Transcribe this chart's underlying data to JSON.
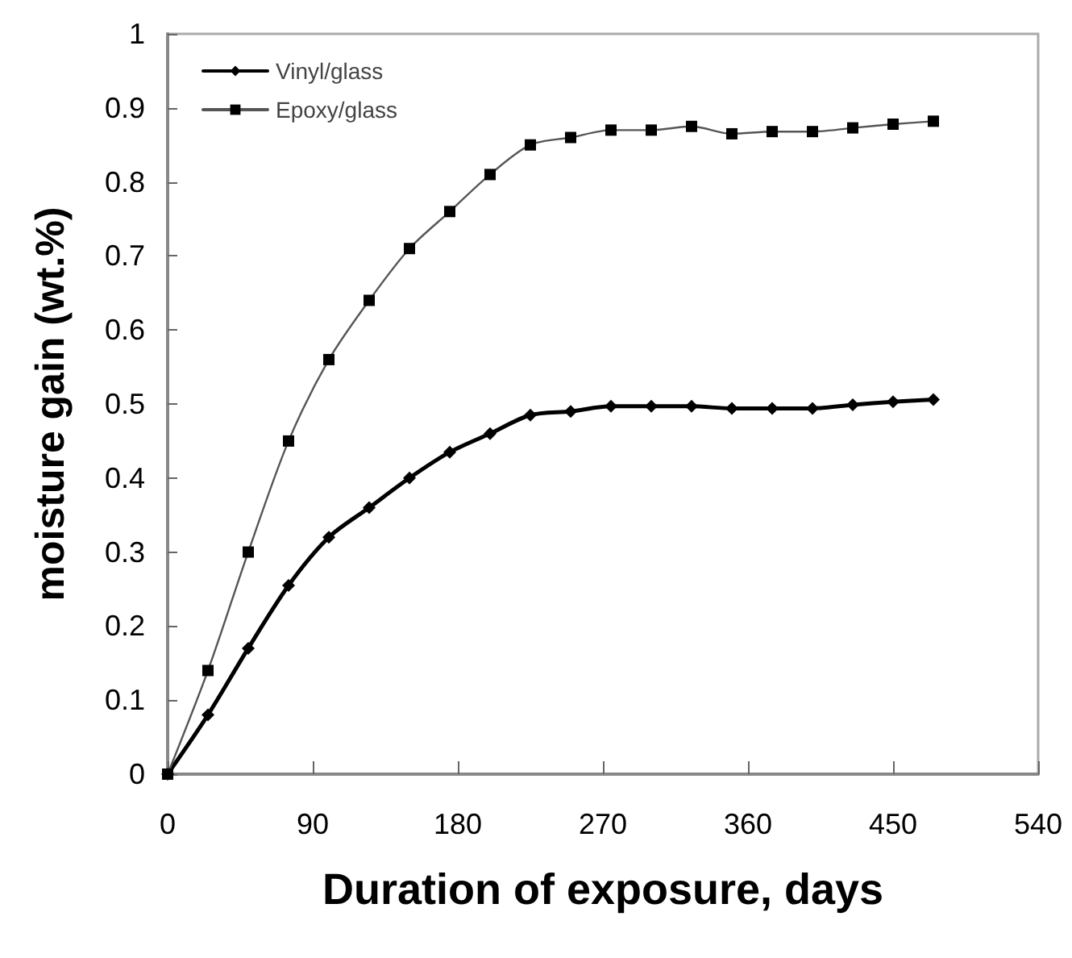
{
  "chart_data": {
    "type": "line",
    "xlabel": "Duration of exposure, days",
    "ylabel": "moisture gain (wt.%)",
    "x": [
      0,
      25,
      50,
      75,
      100,
      125,
      150,
      175,
      200,
      225,
      250,
      275,
      300,
      325,
      350,
      375,
      400,
      425,
      450,
      475
    ],
    "series": [
      {
        "name": "Vinyl/glass",
        "color": "#000000",
        "marker": "diamond",
        "values": [
          0,
          0.08,
          0.17,
          0.255,
          0.32,
          0.36,
          0.4,
          0.435,
          0.46,
          0.485,
          0.49,
          0.497,
          0.497,
          0.497,
          0.494,
          0.494,
          0.494,
          0.499,
          0.503,
          0.506
        ]
      },
      {
        "name": "Epoxy/glass",
        "color": "#555555",
        "marker": "square",
        "values": [
          0,
          0.14,
          0.3,
          0.45,
          0.56,
          0.64,
          0.71,
          0.76,
          0.81,
          0.85,
          0.86,
          0.87,
          0.87,
          0.875,
          0.865,
          0.868,
          0.868,
          0.873,
          0.878,
          0.882
        ]
      }
    ],
    "xlim": [
      0,
      540
    ],
    "xticks": [
      0,
      90,
      180,
      270,
      360,
      450,
      540
    ],
    "ylim": [
      0,
      1
    ],
    "yticks": [
      0,
      0.1,
      0.2,
      0.3,
      0.4,
      0.5,
      0.6,
      0.7,
      0.8,
      0.9,
      1
    ],
    "grid": false,
    "legend": "top left",
    "line_style": "solid"
  }
}
